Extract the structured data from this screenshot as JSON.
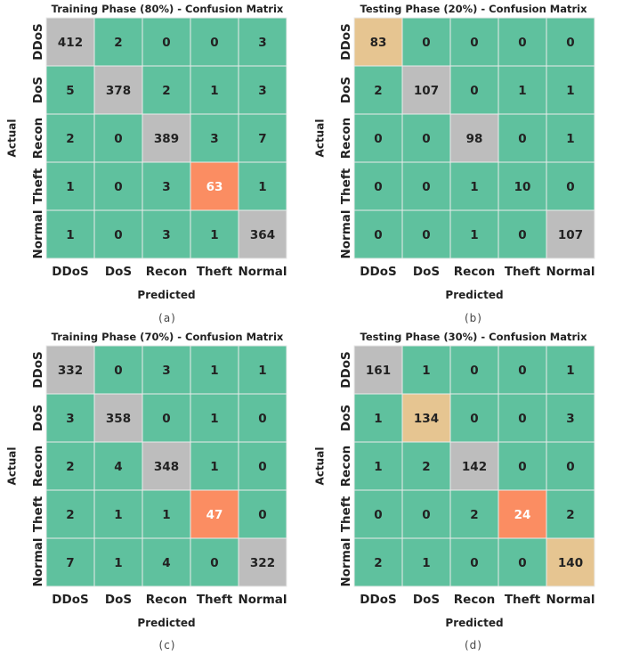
{
  "colors": {
    "correct": "#bdbdbd",
    "off_diagonal": "#5fc19e",
    "theft_highlight": "#fb8d62",
    "diag_highlight": "#e6c591",
    "grid_line": "#eaeaea",
    "text_dark": "#222222",
    "text_light": "#ffffff"
  },
  "chart_data": [
    {
      "type": "heatmap",
      "title": "Training Phase (80%) - Confusion Matrix",
      "xlabel": "Predicted",
      "ylabel": "Actual",
      "caption": "(a)",
      "x_categories": [
        "DDoS",
        "DoS",
        "Recon",
        "Theft",
        "Normal"
      ],
      "y_categories": [
        "DDoS",
        "DoS",
        "Recon",
        "Theft",
        "Normal"
      ],
      "matrix": [
        [
          412,
          2,
          0,
          0,
          3
        ],
        [
          5,
          378,
          2,
          1,
          3
        ],
        [
          2,
          0,
          389,
          3,
          7
        ],
        [
          1,
          0,
          3,
          63,
          1
        ],
        [
          1,
          0,
          3,
          1,
          364
        ]
      ],
      "cell_colors": [
        [
          "correct",
          "off_diagonal",
          "off_diagonal",
          "off_diagonal",
          "off_diagonal"
        ],
        [
          "off_diagonal",
          "correct",
          "off_diagonal",
          "off_diagonal",
          "off_diagonal"
        ],
        [
          "off_diagonal",
          "off_diagonal",
          "correct",
          "off_diagonal",
          "off_diagonal"
        ],
        [
          "off_diagonal",
          "off_diagonal",
          "off_diagonal",
          "theft_highlight",
          "off_diagonal"
        ],
        [
          "off_diagonal",
          "off_diagonal",
          "off_diagonal",
          "off_diagonal",
          "correct"
        ]
      ]
    },
    {
      "type": "heatmap",
      "title": "Testing Phase (20%) - Confusion Matrix",
      "xlabel": "Predicted",
      "ylabel": "Actual",
      "caption": "(b)",
      "x_categories": [
        "DDoS",
        "DoS",
        "Recon",
        "Theft",
        "Normal"
      ],
      "y_categories": [
        "DDoS",
        "DoS",
        "Recon",
        "Theft",
        "Normal"
      ],
      "matrix": [
        [
          83,
          0,
          0,
          0,
          0
        ],
        [
          2,
          107,
          0,
          1,
          1
        ],
        [
          0,
          0,
          98,
          0,
          1
        ],
        [
          0,
          0,
          1,
          10,
          0
        ],
        [
          0,
          0,
          1,
          0,
          107
        ]
      ],
      "cell_colors": [
        [
          "diag_highlight",
          "off_diagonal",
          "off_diagonal",
          "off_diagonal",
          "off_diagonal"
        ],
        [
          "off_diagonal",
          "correct",
          "off_diagonal",
          "off_diagonal",
          "off_diagonal"
        ],
        [
          "off_diagonal",
          "off_diagonal",
          "correct",
          "off_diagonal",
          "off_diagonal"
        ],
        [
          "off_diagonal",
          "off_diagonal",
          "off_diagonal",
          "off_diagonal",
          "off_diagonal"
        ],
        [
          "off_diagonal",
          "off_diagonal",
          "off_diagonal",
          "off_diagonal",
          "correct"
        ]
      ]
    },
    {
      "type": "heatmap",
      "title": "Training Phase (70%) - Confusion Matrix",
      "xlabel": "Predicted",
      "ylabel": "Actual",
      "caption": "(c)",
      "x_categories": [
        "DDoS",
        "DoS",
        "Recon",
        "Theft",
        "Normal"
      ],
      "y_categories": [
        "DDoS",
        "DoS",
        "Recon",
        "Theft",
        "Normal"
      ],
      "matrix": [
        [
          332,
          0,
          3,
          1,
          1
        ],
        [
          3,
          358,
          0,
          1,
          0
        ],
        [
          2,
          4,
          348,
          1,
          0
        ],
        [
          2,
          1,
          1,
          47,
          0
        ],
        [
          7,
          1,
          4,
          0,
          322
        ]
      ],
      "cell_colors": [
        [
          "correct",
          "off_diagonal",
          "off_diagonal",
          "off_diagonal",
          "off_diagonal"
        ],
        [
          "off_diagonal",
          "correct",
          "off_diagonal",
          "off_diagonal",
          "off_diagonal"
        ],
        [
          "off_diagonal",
          "off_diagonal",
          "correct",
          "off_diagonal",
          "off_diagonal"
        ],
        [
          "off_diagonal",
          "off_diagonal",
          "off_diagonal",
          "theft_highlight",
          "off_diagonal"
        ],
        [
          "off_diagonal",
          "off_diagonal",
          "off_diagonal",
          "off_diagonal",
          "correct"
        ]
      ]
    },
    {
      "type": "heatmap",
      "title": "Testing Phase (30%) - Confusion Matrix",
      "xlabel": "Predicted",
      "ylabel": "Actual",
      "caption": "(d)",
      "x_categories": [
        "DDoS",
        "DoS",
        "Recon",
        "Theft",
        "Normal"
      ],
      "y_categories": [
        "DDoS",
        "DoS",
        "Recon",
        "Theft",
        "Normal"
      ],
      "matrix": [
        [
          161,
          1,
          0,
          0,
          1
        ],
        [
          1,
          134,
          0,
          0,
          3
        ],
        [
          1,
          2,
          142,
          0,
          0
        ],
        [
          0,
          0,
          2,
          24,
          2
        ],
        [
          2,
          1,
          0,
          0,
          140
        ]
      ],
      "cell_colors": [
        [
          "correct",
          "off_diagonal",
          "off_diagonal",
          "off_diagonal",
          "off_diagonal"
        ],
        [
          "off_diagonal",
          "diag_highlight",
          "off_diagonal",
          "off_diagonal",
          "off_diagonal"
        ],
        [
          "off_diagonal",
          "off_diagonal",
          "correct",
          "off_diagonal",
          "off_diagonal"
        ],
        [
          "off_diagonal",
          "off_diagonal",
          "off_diagonal",
          "theft_highlight",
          "off_diagonal"
        ],
        [
          "off_diagonal",
          "off_diagonal",
          "off_diagonal",
          "off_diagonal",
          "diag_highlight"
        ]
      ]
    }
  ]
}
